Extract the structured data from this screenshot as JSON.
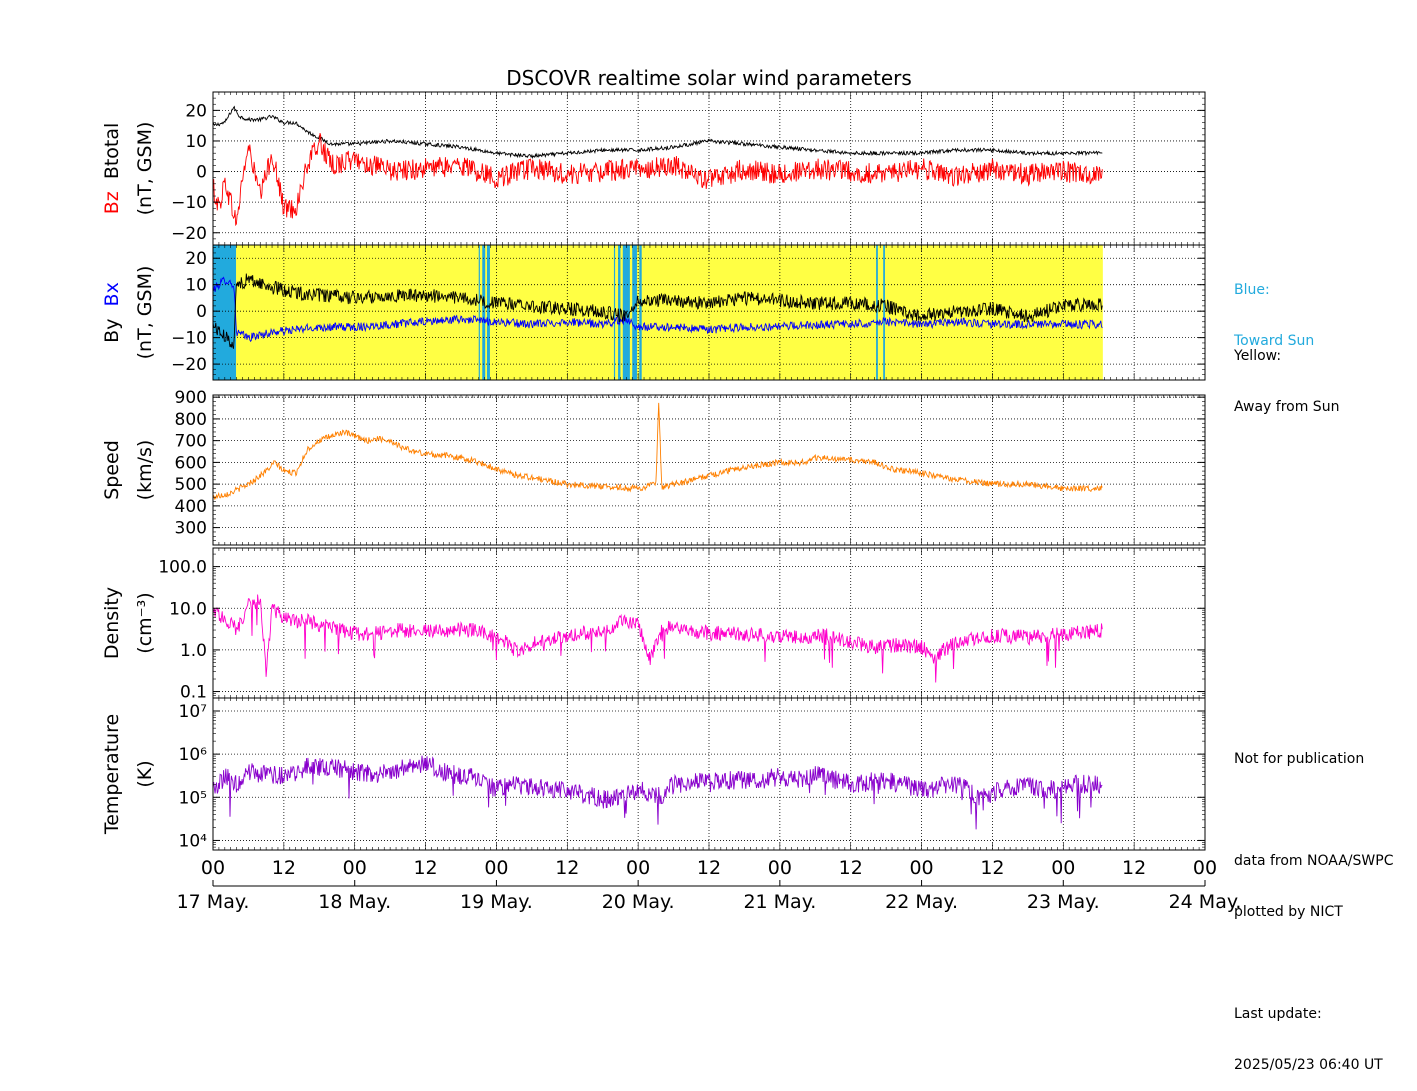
{
  "title": "DSCOVR realtime solar wind parameters",
  "side_notes": {
    "blue_title": "Blue:",
    "blue_desc": "Toward Sun",
    "yellow_title": "Yellow:",
    "yellow_desc": "Away from Sun",
    "note1": "Not for publication",
    "note2": "data from NOAA/SWPC",
    "note3": "plotted by NICT",
    "note4": "Last update:",
    "note5": "2025/05/23 06:40 UT"
  },
  "colors": {
    "bz": "#ff0000",
    "btotal": "#000000",
    "bx": "#0000ff",
    "by": "#000000",
    "speed": "#ff8000",
    "density": "#ff00cc",
    "temperature": "#8800cc",
    "toward_sun": "#22aadd",
    "away_sun": "#ffff44"
  },
  "x_axis": {
    "unit": "hours since 17 May 00 UT",
    "range": [
      0,
      168
    ],
    "tick_labels": [
      "00",
      "12",
      "00",
      "12",
      "00",
      "12",
      "00",
      "12",
      "00",
      "12",
      "00",
      "12",
      "00",
      "12",
      "00"
    ],
    "date_labels": [
      "17 May.",
      "18 May.",
      "19 May.",
      "20 May.",
      "21 May.",
      "22 May.",
      "23 May.",
      "24 May."
    ],
    "data_end": 150.7
  },
  "chart_data": [
    {
      "type": "line",
      "panel": "magnetic_field_total",
      "ylabel_parts": [
        "Bz",
        "Btotal",
        "(nT, GSM)"
      ],
      "ylim": [
        -24,
        26
      ],
      "yticks": [
        -20,
        -10,
        0,
        10,
        20
      ],
      "ytick_labels": [
        "−20",
        "−10",
        "0",
        "10",
        "20"
      ],
      "grid": true,
      "series": [
        {
          "name": "Btotal",
          "x": [
            0,
            2,
            3.5,
            4.5,
            6,
            8,
            10,
            12,
            14,
            16,
            20,
            24,
            30,
            36,
            42,
            48,
            54,
            60,
            66,
            72,
            78,
            84,
            90,
            96,
            102,
            108,
            114,
            120,
            126,
            132,
            138,
            144,
            150.7
          ],
          "y": [
            15,
            16,
            21,
            18,
            17,
            17,
            18,
            16,
            16,
            13,
            9,
            9,
            10,
            9,
            8,
            6,
            5,
            6,
            7,
            7,
            8,
            10,
            9,
            8,
            7,
            6,
            6,
            6,
            7,
            7,
            6,
            6,
            6
          ]
        },
        {
          "name": "Bz",
          "x": [
            0,
            1,
            2,
            3,
            4,
            5,
            6,
            8,
            10,
            12,
            14,
            16,
            18,
            20,
            24,
            30,
            36,
            42,
            48,
            54,
            60,
            66,
            72,
            78,
            84,
            90,
            96,
            102,
            108,
            114,
            120,
            126,
            132,
            138,
            144,
            150.7
          ],
          "y": [
            -5,
            -12,
            -3,
            -10,
            -17,
            -2,
            8,
            -8,
            6,
            -12,
            -12,
            2,
            10,
            2,
            4,
            0,
            1,
            2,
            -2,
            1,
            -1,
            0,
            1,
            2,
            -3,
            1,
            -1,
            1,
            0,
            -1,
            1,
            -2,
            1,
            -1,
            0,
            -1
          ]
        }
      ]
    },
    {
      "type": "line",
      "panel": "magnetic_field_xy",
      "ylabel_parts": [
        "By",
        "Bx",
        "(nT, GSM)"
      ],
      "ylim": [
        -26,
        25
      ],
      "yticks": [
        -20,
        -10,
        0,
        10,
        20
      ],
      "ytick_labels": [
        "−20",
        "−10",
        "0",
        "10",
        "20"
      ],
      "grid": true,
      "sector_bands": [
        {
          "sector": "toward",
          "x": [
            0,
            3.9
          ]
        },
        {
          "sector": "away",
          "x": [
            3.9,
            150.7
          ]
        },
        {
          "sector": "toward",
          "x": [
            45.6,
            46.1
          ]
        },
        {
          "sector": "toward",
          "x": [
            46.4,
            46.9
          ]
        },
        {
          "sector": "toward",
          "x": [
            68.6,
            69.0
          ]
        },
        {
          "sector": "toward",
          "x": [
            69.4,
            70.6
          ]
        },
        {
          "sector": "toward",
          "x": [
            71.0,
            71.8
          ]
        },
        {
          "sector": "toward",
          "x": [
            72.2,
            72.6
          ]
        },
        {
          "sector": "toward",
          "x": [
            112.3,
            112.6
          ]
        },
        {
          "sector": "toward",
          "x": [
            113.5,
            113.8
          ]
        },
        {
          "sector": "toward",
          "x": [
            45.0,
            45.2
          ]
        },
        {
          "sector": "toward",
          "x": [
            67.9,
            68.1
          ]
        }
      ],
      "series": [
        {
          "name": "Bx",
          "x": [
            0,
            2,
            3.5,
            4,
            6,
            10,
            14,
            18,
            24,
            30,
            36,
            42,
            48,
            54,
            60,
            66,
            70,
            72,
            78,
            84,
            90,
            96,
            102,
            108,
            114,
            120,
            126,
            132,
            138,
            144,
            150.7
          ],
          "y": [
            8,
            12,
            10,
            -8,
            -10,
            -8,
            -7,
            -6,
            -6,
            -5,
            -4,
            -3,
            -4,
            -5,
            -4,
            -5,
            -3,
            -6,
            -6,
            -7,
            -6,
            -6,
            -5,
            -5,
            -4,
            -5,
            -4,
            -5,
            -5,
            -5,
            -5
          ]
        },
        {
          "name": "By",
          "x": [
            0,
            2,
            3.5,
            4,
            6,
            10,
            14,
            18,
            24,
            30,
            36,
            42,
            48,
            54,
            60,
            66,
            70,
            72,
            78,
            84,
            90,
            96,
            102,
            108,
            114,
            120,
            126,
            132,
            138,
            144,
            150.7
          ],
          "y": [
            -5,
            -10,
            -12,
            10,
            12,
            9,
            7,
            6,
            5,
            6,
            6,
            5,
            3,
            2,
            1,
            0,
            -2,
            4,
            4,
            3,
            5,
            4,
            3,
            3,
            2,
            -2,
            0,
            1,
            -2,
            2,
            3
          ]
        }
      ]
    },
    {
      "type": "line",
      "panel": "speed",
      "ylabel_parts": [
        "Speed",
        "(km/s)"
      ],
      "ylim": [
        220,
        910
      ],
      "yticks": [
        300,
        400,
        500,
        600,
        700,
        800,
        900
      ],
      "ytick_labels": [
        "300",
        "400",
        "500",
        "600",
        "700",
        "800",
        "900"
      ],
      "grid": true,
      "series": [
        {
          "name": "Speed",
          "x": [
            0,
            3,
            6,
            9,
            10.5,
            12,
            14,
            16,
            18,
            20,
            22,
            24,
            26,
            28,
            30,
            32,
            34,
            36,
            40,
            44,
            48,
            50,
            54,
            60,
            66,
            72,
            75,
            75.5,
            76,
            78,
            80,
            84,
            90,
            96,
            100,
            102,
            104,
            108,
            112,
            116,
            118,
            120,
            126,
            132,
            138,
            144,
            150.7
          ],
          "y": [
            440,
            460,
            500,
            560,
            600,
            560,
            550,
            660,
            700,
            720,
            740,
            720,
            700,
            710,
            700,
            670,
            650,
            640,
            630,
            610,
            570,
            550,
            530,
            500,
            490,
            480,
            500,
            880,
            480,
            500,
            510,
            540,
            580,
            600,
            600,
            620,
            620,
            610,
            600,
            560,
            560,
            550,
            520,
            500,
            500,
            480,
            480
          ]
        }
      ]
    },
    {
      "type": "line",
      "panel": "density",
      "ylabel_parts": [
        "Density",
        "(cm⁻³)"
      ],
      "yscale": "log",
      "ylim": [
        0.07,
        280
      ],
      "yticks": [
        0.1,
        1.0,
        10.0,
        100.0
      ],
      "ytick_labels": [
        "0.1",
        "1.0",
        "10.0",
        "100.0"
      ],
      "grid": true,
      "series": [
        {
          "name": "Density",
          "x": [
            0,
            2,
            4,
            6,
            8,
            9,
            10,
            12,
            14,
            16,
            18,
            22,
            24,
            28,
            32,
            36,
            40,
            44,
            48,
            50,
            52,
            54,
            58,
            62,
            66,
            70,
            72,
            74,
            76,
            78,
            80,
            84,
            90,
            96,
            100,
            104,
            108,
            112,
            116,
            120,
            122,
            126,
            130,
            134,
            138,
            142,
            146,
            150.7
          ],
          "y": [
            8,
            6,
            3,
            12,
            15,
            0.3,
            10,
            6,
            5,
            5,
            4,
            3,
            2.5,
            2.5,
            3,
            2.8,
            3,
            3,
            2,
            1.5,
            0.8,
            1.5,
            2,
            2.5,
            3,
            5,
            4,
            0.6,
            3,
            4,
            3,
            2.5,
            2.5,
            2,
            2,
            2.2,
            1.5,
            1.2,
            1.3,
            1.2,
            0.7,
            1.5,
            2,
            2.2,
            2,
            2.2,
            2.5,
            3
          ]
        }
      ]
    },
    {
      "type": "line",
      "panel": "temperature",
      "ylabel_parts": [
        "Temperature",
        "(K)"
      ],
      "yscale": "log",
      "ylim": [
        6000,
        20000000
      ],
      "yticks": [
        10000,
        100000,
        1000000,
        10000000
      ],
      "ytick_labels": [
        "10⁴",
        "10⁵",
        "10⁶",
        "10⁷"
      ],
      "grid": true,
      "series": [
        {
          "name": "Temperature",
          "x": [
            0,
            2,
            4,
            6,
            8,
            12,
            16,
            20,
            24,
            28,
            32,
            36,
            40,
            44,
            48,
            50,
            54,
            60,
            66,
            70,
            72,
            76,
            78,
            84,
            90,
            96,
            100,
            102,
            108,
            114,
            120,
            126,
            130,
            134,
            138,
            142,
            146,
            150.7
          ],
          "y": [
            150000,
            300000,
            200000,
            400000,
            350000,
            300000,
            500000,
            500000,
            400000,
            350000,
            450000,
            600000,
            350000,
            300000,
            150000,
            200000,
            180000,
            150000,
            90000,
            120000,
            150000,
            100000,
            200000,
            250000,
            250000,
            300000,
            250000,
            350000,
            200000,
            250000,
            150000,
            200000,
            100000,
            150000,
            180000,
            150000,
            200000,
            200000
          ]
        }
      ]
    }
  ]
}
